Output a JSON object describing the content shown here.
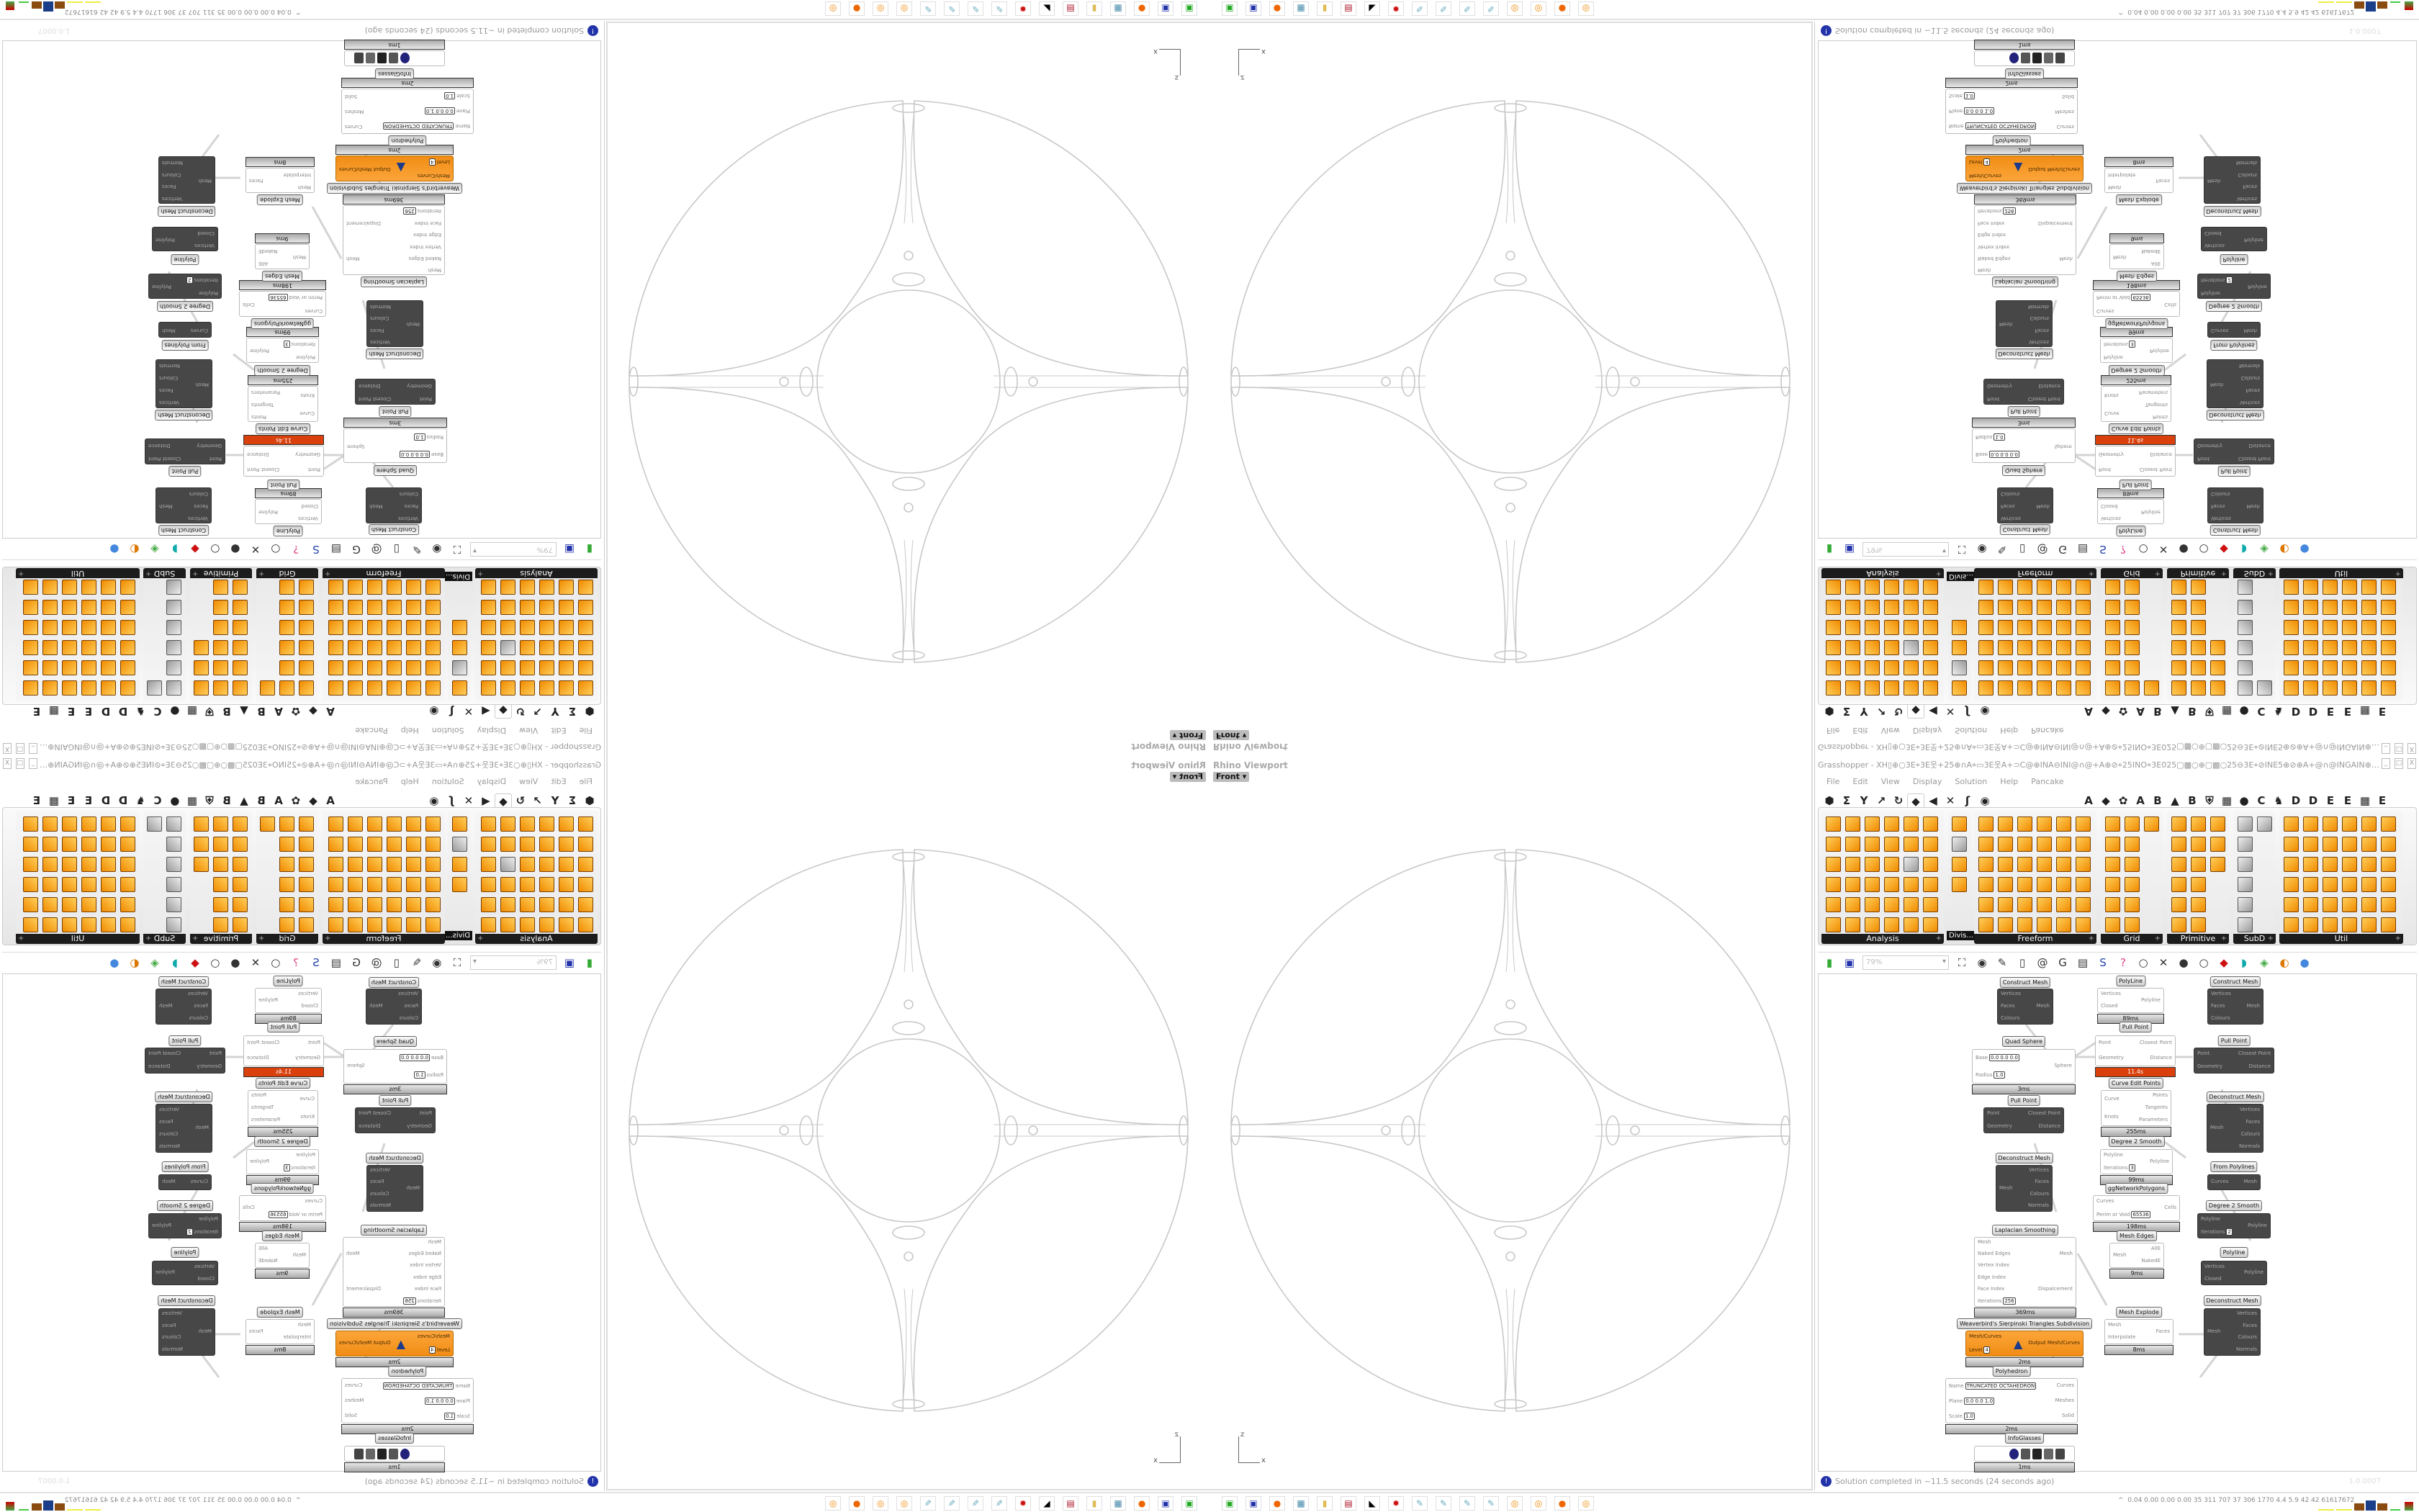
{
  "viewport": {
    "label": "Rhino Viewport",
    "view": "Front",
    "view_arrow": "▾",
    "axis_z": "z",
    "axis_x": "x",
    "geometry_color": "#c8c8c8"
  },
  "grasshopper": {
    "title": "Grasshopper - XH▯⊕○3E⌖3E웃+25⊕∩A⌖▭3E웃A+⊃C@⊕INA⊖INI@∩@+A⊕⊘⌖25INO⌖3E025▢▩○⊕▢▩○25⊖3E⌖⊘INE5⊕⊘⊕A+@∩@INGAIN⊕@⊃C+A웃3E▭A∩⊕...",
    "window_buttons": [
      "_",
      "□",
      "X"
    ],
    "menu": [
      "File",
      "Edit",
      "View",
      "Display",
      "Solution",
      "Help",
      "Pancake"
    ],
    "tabs": [
      "⬢",
      "Σ",
      "Y",
      "↗",
      "↻",
      "◆",
      "◀",
      "✕",
      "ʃ",
      "◉",
      "",
      "A",
      "◆",
      "✿",
      "A",
      "B",
      "▲",
      "B",
      "⛨",
      "▦",
      "●",
      "C",
      "♞",
      "D",
      "D",
      "E",
      "E",
      "▦",
      "E"
    ],
    "panels": [
      {
        "label": "Analysis"
      },
      {
        "label": "Freeform"
      },
      {
        "label": "Grid"
      },
      {
        "label": "Primitive"
      },
      {
        "label": "SubD"
      },
      {
        "label": "Util"
      }
    ],
    "divis_tooltip": "Divis...",
    "accent_color": "#f39419",
    "toolbar": {
      "zoom": "79%",
      "icons": [
        "new-file",
        "save",
        "zoom-extents",
        "preview-eye",
        "sketch-pen",
        "bake",
        "at-sign",
        "gha",
        "panel",
        "search",
        "help-box",
        "bulb",
        "wires",
        "mesh-shaded",
        "wireframe",
        "red-gem",
        "teal",
        "green",
        "half-sphere",
        "blue-sphere"
      ]
    },
    "canvas": {
      "nodes": [
        {
          "label": "Construct Mesh",
          "kind": "dark",
          "in": [
            {
              "n": "Vertices"
            },
            {
              "n": "Faces"
            },
            {
              "n": "Colours"
            }
          ],
          "out": [
            {
              "n": "Mesh"
            }
          ]
        },
        {
          "label": "Quad Sphere",
          "kind": "white",
          "in": [
            {
              "n": "Base",
              "v": "0.0 0.0 0.0"
            },
            {
              "n": "Radius",
              "v": "1.0"
            }
          ],
          "out": [
            {
              "n": "Sphere"
            }
          ],
          "time": "3ms"
        },
        {
          "label": "Pull Point",
          "kind": "dark",
          "in": [
            {
              "n": "Point"
            },
            {
              "n": "Geometry"
            }
          ],
          "out": [
            {
              "n": "Closest Point"
            },
            {
              "n": "Distance"
            }
          ]
        },
        {
          "label": "Deconstruct Mesh",
          "kind": "dark",
          "in": [
            {
              "n": "Mesh"
            }
          ],
          "out": [
            {
              "n": "Vertices"
            },
            {
              "n": "Faces"
            },
            {
              "n": "Colours"
            },
            {
              "n": "Normals"
            }
          ]
        },
        {
          "label": "Laplacian Smoothing",
          "kind": "white",
          "in": [
            {
              "n": "Mesh"
            },
            {
              "n": "Naked Edges"
            },
            {
              "n": "Vertex Index"
            },
            {
              "n": "Edge Index"
            },
            {
              "n": "Face Index"
            },
            {
              "n": "Iterations",
              "v": "256"
            }
          ],
          "out": [
            {
              "n": "Mesh"
            },
            {
              "n": "Dispalcement"
            }
          ],
          "time": "369ms"
        },
        {
          "label": "Weaverbird's Sierpinski Triangles Subdivision",
          "kind": "orange",
          "in": [
            {
              "n": "Mesh/Curves"
            },
            {
              "n": "Level",
              "v": "4"
            }
          ],
          "out": [
            {
              "n": "Output Mesh/Curves"
            }
          ],
          "time": "2ms"
        },
        {
          "label": "Polyhedron",
          "kind": "white",
          "in": [
            {
              "n": "Name",
              "v": "TRUNCATED OCTAHEDRON"
            },
            {
              "n": "Plane",
              "v": "0.0 0.0 1.0"
            },
            {
              "n": "Scale",
              "v": "1.0"
            }
          ],
          "out": [
            {
              "n": "Curves"
            },
            {
              "n": "Meshes"
            },
            {
              "n": "Solid"
            }
          ],
          "time": "2ms"
        },
        {
          "label": "InfoGlasses",
          "kind": "white",
          "in": [],
          "out": [],
          "time": "1ms"
        },
        {
          "label": "PolyLine",
          "kind": "white",
          "in": [
            {
              "n": "Vertices"
            },
            {
              "n": "Closed"
            }
          ],
          "out": [
            {
              "n": "Polyline"
            }
          ],
          "time": "89ms"
        },
        {
          "label": "Pull Point",
          "kind": "white",
          "in": [
            {
              "n": "Point"
            },
            {
              "n": "Geometry"
            }
          ],
          "out": [
            {
              "n": "Closest Point"
            },
            {
              "n": "Distance"
            }
          ],
          "time": "11.4s",
          "hot": true
        },
        {
          "label": "Curve Edit Points",
          "kind": "white",
          "in": [
            {
              "n": "Curve"
            },
            {
              "n": "Knots"
            }
          ],
          "out": [
            {
              "n": "Points"
            },
            {
              "n": "Tangents"
            },
            {
              "n": "Parameters"
            }
          ],
          "time": "255ms"
        },
        {
          "label": "Degree 2 Smooth",
          "kind": "white",
          "in": [
            {
              "n": "Polyline"
            },
            {
              "n": "Iterations",
              "v": "3"
            }
          ],
          "out": [
            {
              "n": "Polyline"
            }
          ],
          "time": "99ms"
        },
        {
          "label": "ggNetworkPolygons",
          "kind": "white",
          "in": [
            {
              "n": "Curves"
            },
            {
              "n": "Perim or Void",
              "v": "65536"
            }
          ],
          "out": [
            {
              "n": "Cells"
            }
          ],
          "time": "198ms"
        },
        {
          "label": "Mesh Edges",
          "kind": "white",
          "in": [
            {
              "n": "Mesh"
            }
          ],
          "out": [
            {
              "n": "AllE"
            },
            {
              "n": "NakedE"
            }
          ],
          "time": "9ms"
        },
        {
          "label": "Mesh Explode",
          "kind": "white",
          "in": [
            {
              "n": "Mesh"
            },
            {
              "n": "Interpolate"
            }
          ],
          "out": [
            {
              "n": "Faces"
            }
          ],
          "time": "8ms"
        },
        {
          "label": "Construct Mesh",
          "kind": "dark",
          "in": [
            {
              "n": "Vertices"
            },
            {
              "n": "Faces"
            },
            {
              "n": "Colours"
            }
          ],
          "out": [
            {
              "n": "Mesh"
            }
          ]
        },
        {
          "label": "Pull Point",
          "kind": "dark",
          "in": [
            {
              "n": "Point"
            },
            {
              "n": "Geometry"
            }
          ],
          "out": [
            {
              "n": "Closest Point"
            },
            {
              "n": "Distance"
            }
          ]
        },
        {
          "label": "Deconstruct Mesh",
          "kind": "dark",
          "in": [
            {
              "n": "Mesh"
            }
          ],
          "out": [
            {
              "n": "Vertices"
            },
            {
              "n": "Faces"
            },
            {
              "n": "Colours"
            },
            {
              "n": "Normals"
            }
          ]
        },
        {
          "label": "From Polylines",
          "kind": "dark",
          "in": [
            {
              "n": "Curves"
            }
          ],
          "out": [
            {
              "n": "Mesh"
            }
          ]
        },
        {
          "label": "Degree 2 Smooth",
          "kind": "dark",
          "in": [
            {
              "n": "Polyline"
            },
            {
              "n": "Iterations",
              "v": "2"
            }
          ],
          "out": [
            {
              "n": "Polyline"
            }
          ]
        },
        {
          "label": "Polyline",
          "kind": "dark",
          "in": [
            {
              "n": "Vertices"
            },
            {
              "n": "Closed"
            }
          ],
          "out": [
            {
              "n": "Polyline"
            }
          ]
        },
        {
          "label": "Deconstruct Mesh",
          "kind": "dark",
          "in": [
            {
              "n": "Mesh"
            }
          ],
          "out": [
            {
              "n": "Vertices"
            },
            {
              "n": "Faces"
            },
            {
              "n": "Colours"
            },
            {
              "n": "Normals"
            }
          ]
        }
      ]
    },
    "status": {
      "icon": "!",
      "message": "Solution completed in ~11.5 seconds (24 seconds ago)",
      "version": "1.0.0007"
    }
  },
  "taskbar": {
    "apps": [
      "monitor",
      "floppy-64",
      "firefox",
      "calculator",
      "folder",
      "winrar",
      "inkscape",
      "red-gear",
      "paint",
      "paint",
      "paint",
      "paint",
      "blender",
      "blender",
      "firefox",
      "blender"
    ],
    "stats": "0.04 0.00 0.00 0.00  35  311  707  37  306  1770  4.4  5.9  42  42  61617672",
    "expand": "^"
  }
}
